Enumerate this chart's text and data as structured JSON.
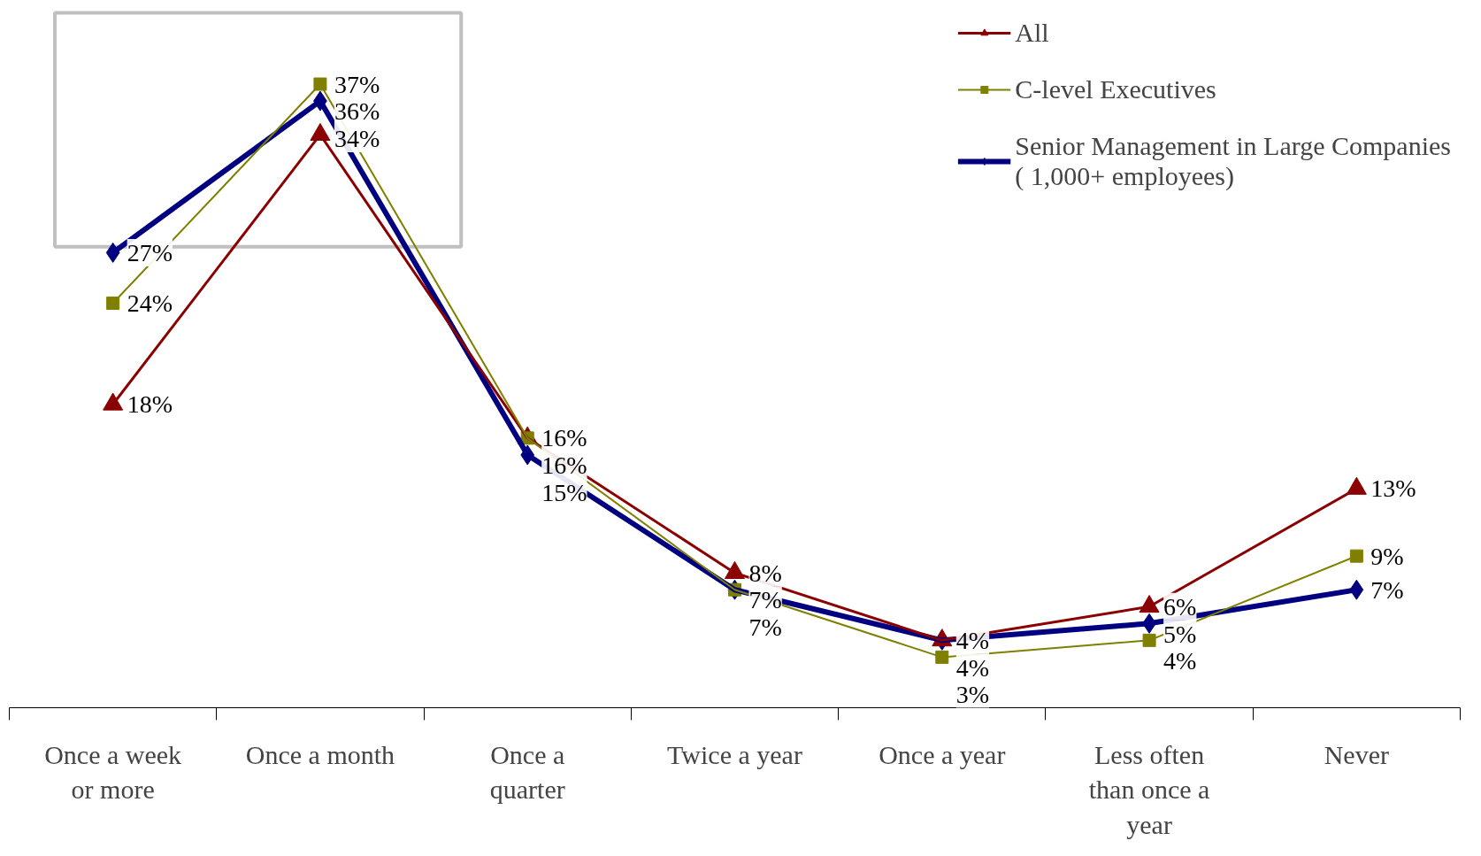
{
  "chart_data": {
    "type": "line",
    "categories": [
      "Once a week or more",
      "Once a month",
      "Once a quarter",
      "Twice a year",
      "Once a year",
      "Less often than once a year",
      "Never"
    ],
    "series": [
      {
        "name": "All",
        "color": "#8b0000",
        "marker": "triangle",
        "values": [
          18,
          34,
          16,
          8,
          4,
          6,
          13
        ],
        "value_labels": [
          "18%",
          "34%",
          "16%",
          "8%",
          "4%",
          "6%",
          "13%"
        ]
      },
      {
        "name": "C-level Executives",
        "color": "#808000",
        "marker": "square",
        "values": [
          24,
          37,
          16,
          7,
          3,
          4,
          9
        ],
        "value_labels": [
          "24%",
          "37%",
          "16%",
          "7%",
          "3%",
          "4%",
          "9%"
        ]
      },
      {
        "name": "Senior Management in Large Companies ( 1,000+ employees)",
        "color": "#000080",
        "marker": "diamond",
        "values": [
          27,
          36,
          15,
          7,
          4,
          5,
          7
        ],
        "value_labels": [
          "27%",
          "36%",
          "15%",
          "7%",
          "4%",
          "5%",
          "7%"
        ]
      }
    ],
    "legend": "top right",
    "grid": false
  }
}
